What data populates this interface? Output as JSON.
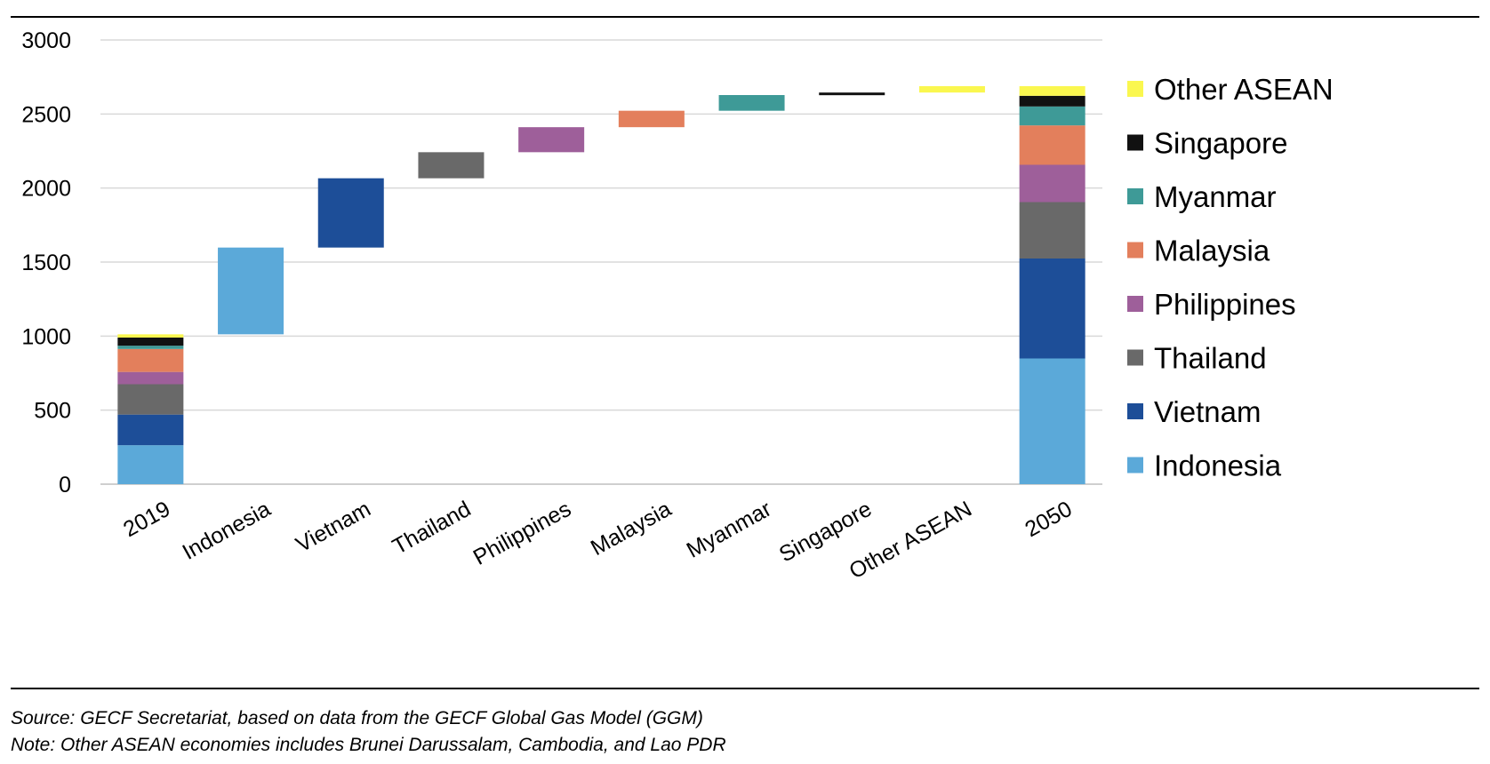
{
  "chart_data": {
    "type": "bar",
    "subtype": "waterfall",
    "title": "",
    "xlabel": "",
    "ylabel": "",
    "ylim": [
      0,
      3000
    ],
    "yticks": [
      0,
      500,
      1000,
      1500,
      2000,
      2500,
      3000
    ],
    "grid": true,
    "legend_position": "right",
    "categories": [
      "2019",
      "Indonesia",
      "Vietnam",
      "Thailand",
      "Philippines",
      "Malaysia",
      "Myanmar",
      "Singapore",
      "Other ASEAN",
      "2050"
    ],
    "series": [
      {
        "name": "Indonesia",
        "color": "#5BA9D9"
      },
      {
        "name": "Vietnam",
        "color": "#1D4E98"
      },
      {
        "name": "Thailand",
        "color": "#696969"
      },
      {
        "name": "Philippines",
        "color": "#9E5F9A"
      },
      {
        "name": "Malaysia",
        "color": "#E37F5C"
      },
      {
        "name": "Myanmar",
        "color": "#3E9A97"
      },
      {
        "name": "Singapore",
        "color": "#111111"
      },
      {
        "name": "Other ASEAN",
        "color": "#FAF74F"
      }
    ],
    "stack_2019": [
      263,
      207,
      205,
      83,
      155,
      22,
      55,
      22
    ],
    "increments": [
      {
        "category": "Indonesia",
        "from": 1012,
        "to": 1598
      },
      {
        "category": "Vietnam",
        "from": 1598,
        "to": 2066
      },
      {
        "category": "Thailand",
        "from": 2066,
        "to": 2242
      },
      {
        "category": "Philippines",
        "from": 2242,
        "to": 2411
      },
      {
        "category": "Malaysia",
        "from": 2411,
        "to": 2522
      },
      {
        "category": "Myanmar",
        "from": 2522,
        "to": 2628
      },
      {
        "category": "Singapore",
        "from": 2628,
        "to": 2645
      },
      {
        "category": "Other ASEAN",
        "from": 2645,
        "to": 2688
      }
    ],
    "stack_2050": [
      849,
      675,
      381,
      252,
      266,
      128,
      72,
      65
    ]
  },
  "notes": {
    "source": "Source: GECF Secretariat, based on data from the GECF Global Gas Model (GGM)",
    "note": "Note: Other ASEAN economies includes Brunei Darussalam, Cambodia, and Lao PDR"
  }
}
